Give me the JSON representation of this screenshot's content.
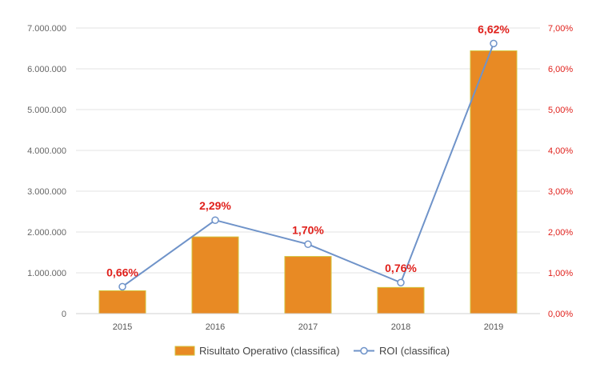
{
  "chart_data": {
    "type": "bar+line",
    "categories": [
      "2015",
      "2016",
      "2017",
      "2018",
      "2019"
    ],
    "series": [
      {
        "name": "Risultato Operativo (classifica)",
        "kind": "bar",
        "axis": "left",
        "values": [
          560000,
          1880000,
          1400000,
          640000,
          6440000
        ]
      },
      {
        "name": "ROI (classifica)",
        "kind": "line",
        "axis": "right",
        "values": [
          0.66,
          2.29,
          1.7,
          0.76,
          6.62
        ],
        "data_labels": [
          "0,66%",
          "2,29%",
          "1,70%",
          "0,76%",
          "6,62%"
        ]
      }
    ],
    "y_left": {
      "range": [
        0,
        7000000
      ],
      "ticks": [
        0,
        1000000,
        2000000,
        3000000,
        4000000,
        5000000,
        6000000,
        7000000
      ],
      "tick_labels": [
        "0",
        "1.000.000",
        "2.000.000",
        "3.000.000",
        "4.000.000",
        "5.000.000",
        "6.000.000",
        "7.000.000"
      ]
    },
    "y_right": {
      "range": [
        0,
        7
      ],
      "ticks": [
        0,
        1,
        2,
        3,
        4,
        5,
        6,
        7
      ],
      "tick_labels": [
        "0,00%",
        "1,00%",
        "2,00%",
        "3,00%",
        "4,00%",
        "5,00%",
        "6,00%",
        "7,00%"
      ]
    },
    "grid": true,
    "legend_position": "bottom",
    "colors": {
      "bar_fill": "#e88a24",
      "bar_stroke": "#d2c23a",
      "line": "#6f93c9",
      "marker_fill": "#ffffff",
      "right_axis_text": "#e0201b",
      "data_label": "#e0201b",
      "grid": "#e3e3e3"
    }
  }
}
